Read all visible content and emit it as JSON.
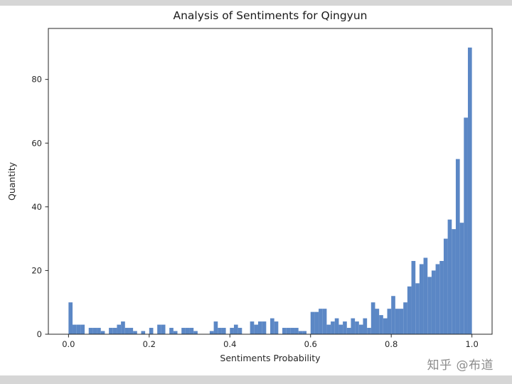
{
  "page": {
    "background": "#ffffff",
    "border_strip_color": "#d6d6d6"
  },
  "chart_data": {
    "type": "bar",
    "subtype": "histogram",
    "title": "Analysis of Sentiments for Qingyun",
    "xlabel": "Sentiments Probability",
    "ylabel": "Quantity",
    "bin_start": 0.0,
    "bin_width": 0.01,
    "values": [
      10,
      3,
      3,
      3,
      0,
      2,
      2,
      2,
      1,
      0,
      2,
      2,
      3,
      4,
      2,
      2,
      1,
      0,
      1,
      0,
      2,
      0,
      3,
      3,
      0,
      2,
      1,
      0,
      2,
      2,
      2,
      1,
      0,
      0,
      0,
      1,
      4,
      2,
      2,
      0,
      2,
      3,
      2,
      0,
      0,
      4,
      3,
      4,
      4,
      0,
      5,
      4,
      0,
      2,
      2,
      2,
      2,
      1,
      1,
      0,
      7,
      7,
      8,
      8,
      3,
      4,
      5,
      3,
      4,
      2,
      5,
      4,
      3,
      5,
      2,
      10,
      8,
      6,
      5,
      8,
      12,
      8,
      8,
      10,
      15,
      23,
      16,
      22,
      24,
      18,
      20,
      22,
      23,
      30,
      36,
      33,
      55,
      35,
      68,
      90
    ],
    "xticks": [
      0.0,
      0.2,
      0.4,
      0.6,
      0.8,
      1.0
    ],
    "xtick_labels": [
      "0.0",
      "0.2",
      "0.4",
      "0.6",
      "0.8",
      "1.0"
    ],
    "yticks": [
      0,
      20,
      40,
      60,
      80
    ],
    "ytick_labels": [
      "0",
      "20",
      "40",
      "60",
      "80"
    ],
    "xlim": [
      -0.05,
      1.05
    ],
    "ylim": [
      0,
      96
    ],
    "grid": false,
    "legend": null,
    "bar_color": "#5b87c5",
    "axis_color": "#262626",
    "tick_label_color": "#262626",
    "title_color": "#1a1a1a"
  },
  "watermark": {
    "text": "知乎 @布道",
    "color": "#8c8c8c"
  }
}
